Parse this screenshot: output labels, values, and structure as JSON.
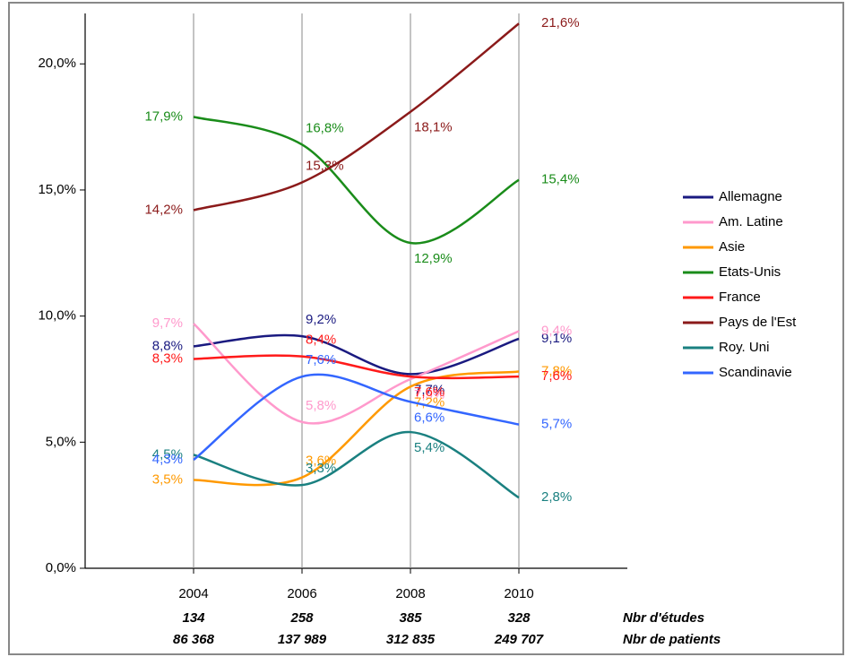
{
  "chart_data": {
    "type": "line",
    "x": [
      2004,
      2006,
      2008,
      2010
    ],
    "xlim": [
      2002,
      2012
    ],
    "xticks": [
      2004,
      2006,
      2008,
      2010
    ],
    "ylim": [
      0,
      22
    ],
    "yticks": [
      {
        "value": 0,
        "label": "0,0%"
      },
      {
        "value": 5,
        "label": "5,0%"
      },
      {
        "value": 10,
        "label": "10,0%"
      },
      {
        "value": 15,
        "label": "15,0%"
      },
      {
        "value": 20,
        "label": "20,0%"
      }
    ],
    "grid": "x",
    "legend": "right",
    "series": [
      {
        "name": "Allemagne",
        "color": "#1a1a80",
        "values": [
          8.8,
          9.2,
          7.7,
          9.1
        ],
        "value_labels": [
          "8,8%",
          "9,2%",
          "7,7%",
          "9,1%"
        ]
      },
      {
        "name": "Am. Latine",
        "color": "#ff99cc",
        "values": [
          9.7,
          5.8,
          7.5,
          9.4
        ],
        "value_labels": [
          "9,7%",
          "5,8%",
          "7,5%",
          "9,4%"
        ]
      },
      {
        "name": "Asie",
        "color": "#ff9900",
        "values": [
          3.5,
          3.6,
          7.2,
          7.8
        ],
        "value_labels": [
          "3,5%",
          "3,6%",
          "7,2%",
          "7,8%"
        ]
      },
      {
        "name": "Etats-Unis",
        "color": "#1a8c1a",
        "values": [
          17.9,
          16.8,
          12.9,
          15.4
        ],
        "value_labels": [
          "17,9%",
          "16,8%",
          "12,9%",
          "15,4%"
        ]
      },
      {
        "name": "France",
        "color": "#ff1a1a",
        "values": [
          8.3,
          8.4,
          7.6,
          7.6
        ],
        "value_labels": [
          "8,3%",
          "8,4%",
          "7,6%",
          "7,6%"
        ]
      },
      {
        "name": "Pays de l'Est",
        "color": "#8b1a1a",
        "values": [
          14.2,
          15.3,
          18.1,
          21.6
        ],
        "value_labels": [
          "14,2%",
          "15,3%",
          "18,1%",
          "21,6%"
        ]
      },
      {
        "name": "Roy. Uni",
        "color": "#1a8080",
        "values": [
          4.5,
          3.3,
          5.4,
          2.8
        ],
        "value_labels": [
          "4,5%",
          "3,3%",
          "5,4%",
          "2,8%"
        ]
      },
      {
        "name": "Scandinavie",
        "color": "#3366ff",
        "values": [
          4.3,
          7.6,
          6.6,
          5.7
        ],
        "value_labels": [
          "4,3%",
          "7,6%",
          "6,6%",
          "5,7%"
        ]
      }
    ],
    "study_counts": {
      "label": "Nbr d'études",
      "values": [
        134,
        258,
        385,
        328
      ]
    },
    "patient_counts": {
      "label": "Nbr de patients",
      "values": [
        86368,
        137989,
        312835,
        249707
      ],
      "value_labels": [
        "86 368",
        "137 989",
        "312 835",
        "249 707"
      ]
    }
  }
}
